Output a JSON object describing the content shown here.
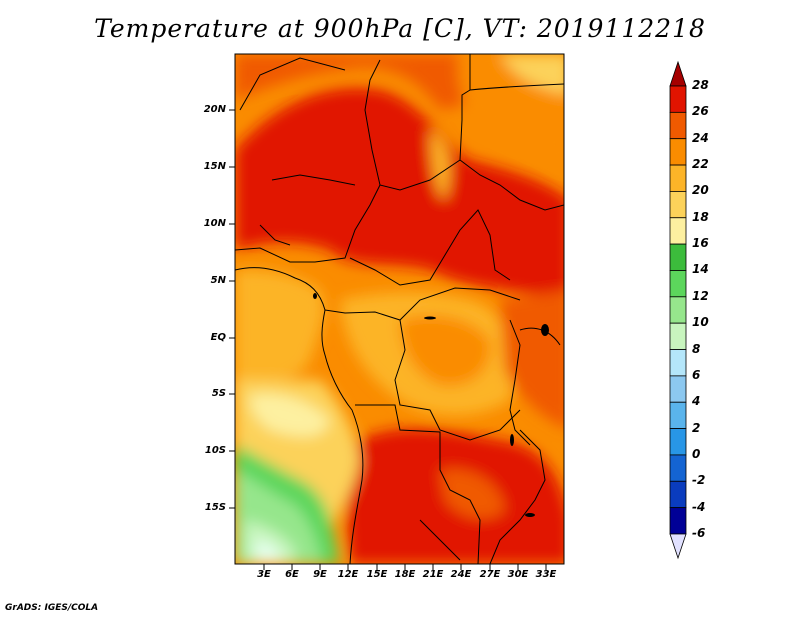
{
  "title": "Temperature at 900hPa [C], VT: 2019112218",
  "credit": "GrADS: IGES/COLA",
  "map": {
    "lat_labels": [
      "20N",
      "15N",
      "10N",
      "5N",
      "EQ",
      "5S",
      "10S",
      "15S"
    ],
    "lon_labels": [
      "3E",
      "6E",
      "9E",
      "12E",
      "15E",
      "18E",
      "21E",
      "24E",
      "27E",
      "30E",
      "33E"
    ]
  },
  "colorbar": {
    "labels": [
      "28",
      "26",
      "24",
      "22",
      "20",
      "18",
      "16",
      "14",
      "12",
      "10",
      "8",
      "6",
      "4",
      "2",
      "0",
      "-2",
      "-4",
      "-6"
    ],
    "colors": [
      "#a50000",
      "#e11400",
      "#f05a00",
      "#fa8c00",
      "#fcb428",
      "#fcd25a",
      "#fdf0a0",
      "#3cbc3c",
      "#5cd65c",
      "#96e68c",
      "#c8f5be",
      "#b4e6fa",
      "#8cc8f0",
      "#5ab4ec",
      "#2896e6",
      "#1464d2",
      "#0a3cbe",
      "#000096",
      "#e1e1ff"
    ]
  }
}
